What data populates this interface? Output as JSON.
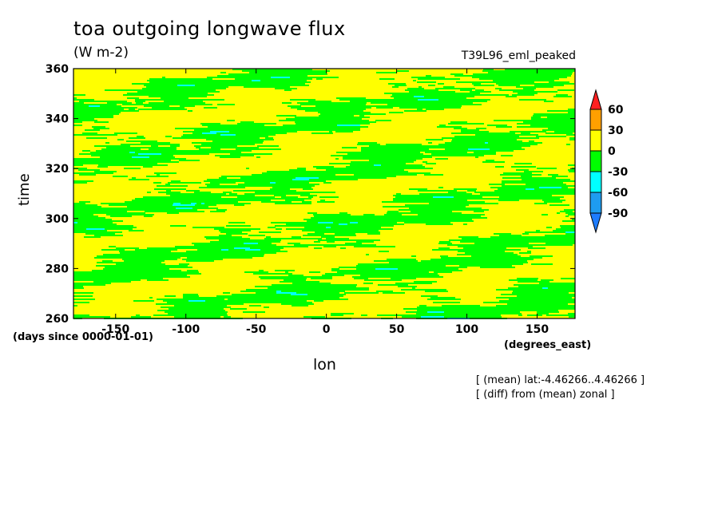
{
  "title": "toa outgoing longwave flux",
  "units": "(W m-2)",
  "run_label": "T39L96_eml_peaked",
  "chart_data": {
    "type": "heatmap",
    "xlabel": "lon",
    "ylabel": "time",
    "x_units": "(degrees_east)",
    "y_units": "(days since 0000-01-01)",
    "xlim": [
      -180,
      177
    ],
    "ylim": [
      260,
      360
    ],
    "x_ticks": [
      -150,
      -100,
      -50,
      0,
      50,
      100,
      150
    ],
    "y_ticks": [
      260,
      280,
      300,
      320,
      340,
      360
    ],
    "notes": [
      "[ (mean) lat:-4.46266..4.46266 ]",
      "[ (diff) from (mean) zonal ]"
    ],
    "colorbar": {
      "levels": [
        -90,
        -60,
        -30,
        0,
        30,
        60
      ],
      "colors": [
        "#1e7cff",
        "#1e9cf0",
        "#00ffff",
        "#00ff00",
        "#ffff00",
        "#ffa000",
        "#ff2020"
      ],
      "extend": "both"
    },
    "field_description_ranges": {
      "dominant_bins": [
        "-30..0",
        "0..30"
      ],
      "occasional_bins": [
        "-60..-30",
        "-90..-60"
      ]
    }
  }
}
